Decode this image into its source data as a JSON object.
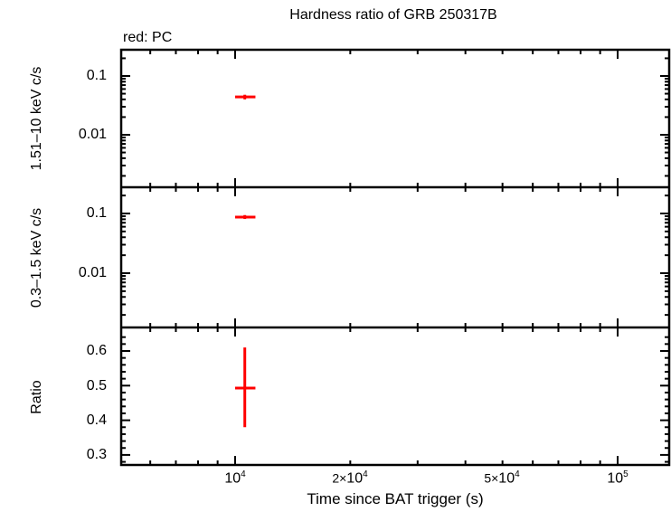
{
  "header": {
    "title": "Hardness ratio of GRB 250317B",
    "legend_note": "red: PC"
  },
  "panels": [
    {
      "id": "hard",
      "ylabel": "1.51–10 keV c/s",
      "yscale": "log",
      "yticks": [
        "0.1",
        "0.01"
      ]
    },
    {
      "id": "soft",
      "ylabel": "0.3–1.5 keV c/s",
      "yscale": "log",
      "yticks": [
        "0.1",
        "0.01"
      ]
    },
    {
      "id": "ratio",
      "ylabel": "Ratio",
      "yscale": "linear",
      "yticks": [
        "0.6",
        "0.5",
        "0.4",
        "0.3"
      ]
    }
  ],
  "xaxis": {
    "label": "Time since BAT trigger (s)",
    "ticks": [
      {
        "base": "10",
        "exp": "4"
      },
      {
        "mant": "2×",
        "base": "10",
        "exp": "4"
      },
      {
        "mant": "5×",
        "base": "10",
        "exp": "4"
      },
      {
        "base": "10",
        "exp": "5"
      }
    ]
  },
  "colors": {
    "series_pc": "#ff0000",
    "axes": "#000000",
    "background": "#ffffff"
  },
  "chart_data": [
    {
      "type": "scatter",
      "title": "Hardness ratio of GRB 250317B",
      "subtitle": "red: PC",
      "xlabel": "Time since BAT trigger (s)",
      "ylabel": "1.51–10 keV c/s",
      "xscale": "log",
      "yscale": "log",
      "xlim": [
        6000,
        140000
      ],
      "ylim": [
        0.0012,
        0.27
      ],
      "series": [
        {
          "name": "PC",
          "color": "#ff0000",
          "points": [
            {
              "x": 10600,
              "y": 0.044,
              "xerr": [
                10000,
                11300
              ],
              "yerr": [
                0.04,
                0.048
              ]
            }
          ]
        }
      ]
    },
    {
      "type": "scatter",
      "ylabel": "0.3–1.5 keV c/s",
      "xscale": "log",
      "yscale": "log",
      "xlim": [
        6000,
        140000
      ],
      "ylim": [
        0.0012,
        0.27
      ],
      "series": [
        {
          "name": "PC",
          "color": "#ff0000",
          "points": [
            {
              "x": 10600,
              "y": 0.087,
              "xerr": [
                10000,
                11300
              ],
              "yerr": [
                0.081,
                0.094
              ]
            }
          ]
        }
      ]
    },
    {
      "type": "scatter",
      "ylabel": "Ratio",
      "xlabel": "Time since BAT trigger (s)",
      "xscale": "log",
      "yscale": "linear",
      "xlim": [
        6000,
        140000
      ],
      "ylim": [
        0.27,
        0.66
      ],
      "xticks": [
        "10^4",
        "2x10^4",
        "5x10^4",
        "10^5"
      ],
      "yticks": [
        0.3,
        0.4,
        0.5,
        0.6
      ],
      "series": [
        {
          "name": "PC",
          "color": "#ff0000",
          "points": [
            {
              "x": 10600,
              "y": 0.493,
              "xerr": [
                10000,
                11300
              ],
              "yerr": [
                0.38,
                0.61
              ]
            }
          ]
        }
      ]
    }
  ]
}
